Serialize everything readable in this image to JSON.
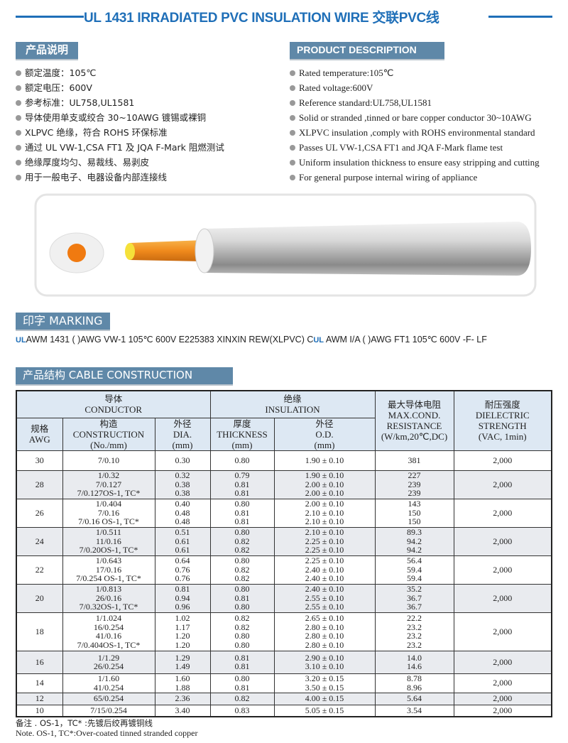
{
  "title": "UL 1431 IRRADIATED PVC INSULATION WIRE  交联PVC线",
  "colors": {
    "accent": "#1f6fb8",
    "badge": "#5f88a8",
    "row_alt": "#e9ebef",
    "header_bg": "#dde8f3"
  },
  "desc_cn": {
    "heading": "产品说明",
    "items": [
      "额定温度：105℃",
      "额定电压：600V",
      "参考标准：UL758,UL1581",
      "导体使用单支或绞合 30~10AWG 镀锡或裸铜",
      "XLPVC 绝缘，符合 ROHS 环保标准",
      "通过 UL VW-1,CSA FT1 及 JQA F-Mark 阻燃测试",
      "绝缘厚度均匀、易裁线、易剥皮",
      "用于一般电子、电器设备内部连接线"
    ]
  },
  "desc_en": {
    "heading": "PRODUCT DESCRIPTION",
    "items": [
      "Rated temperature:105℃",
      "Rated voltage:600V",
      "Reference standard:UL758,UL1581",
      "Solid or stranded ,tinned or bare copper conductor 30~10AWG",
      "XLPVC insulation ,comply with ROHS environmental standard",
      "Passes UL VW-1,CSA FT1 and JQA F-Mark flame test",
      "Uniform insulation thickness to ensure easy stripping and cutting",
      "For general purpose internal wiring of appliance"
    ]
  },
  "marking": {
    "heading": "印字  MARKING",
    "ul_logo": "UL",
    "text1": "AWM 1431 (  )AWG VW-1 105℃ 600V E225383 XINXIN REW(XLPVC) C",
    "text2": " AWM I/A (  )AWG FT1 105℃ 600V  -F- LF"
  },
  "construction": {
    "heading": "产品结构   CABLE CONSTRUCTION",
    "headers": {
      "conductor": [
        "导体",
        "CONDUCTOR"
      ],
      "insulation": [
        "绝缘",
        "INSULATION"
      ],
      "resistance": [
        "最大导体电阻",
        "MAX.COND.",
        "RESISTANCE",
        "(W/km,20℃,DC)"
      ],
      "dielectric": [
        "耐压强度",
        "DIELECTRIC",
        "STRENGTH",
        "(VAC, 1min)"
      ],
      "awg": [
        "规格",
        "AWG"
      ],
      "construction": [
        "构造",
        "CONSTRUCTION",
        "(No./mm)"
      ],
      "dia": [
        "外径",
        "DIA.",
        "(mm)"
      ],
      "thickness": [
        "厚度",
        "THICKNESS",
        "(mm)"
      ],
      "od": [
        "外径",
        "O.D.",
        "(mm)"
      ]
    },
    "rows": [
      {
        "awg": "30",
        "construction": [
          "7/0.10"
        ],
        "dia": [
          "0.30"
        ],
        "thickness": [
          "0.80"
        ],
        "od": [
          "1.90 ± 0.10"
        ],
        "resistance": [
          "381"
        ],
        "dielectric": "2,000"
      },
      {
        "awg": "28",
        "construction": [
          "1/0.32",
          "7/0.127",
          "7/0.127OS-1, TC*"
        ],
        "dia": [
          "0.32",
          "0.38",
          "0.38"
        ],
        "thickness": [
          "0.79",
          "0.81",
          "0.81"
        ],
        "od": [
          "1.90 ± 0.10",
          "2.00 ± 0.10",
          "2.00 ± 0.10"
        ],
        "resistance": [
          "227",
          "239",
          "239"
        ],
        "dielectric": "2,000"
      },
      {
        "awg": "26",
        "construction": [
          "1/0.404",
          "7/0.16",
          "7/0.16 OS-1, TC*"
        ],
        "dia": [
          "0.40",
          "0.48",
          "0.48"
        ],
        "thickness": [
          "0.80",
          "0.81",
          "0.81"
        ],
        "od": [
          "2.00 ± 0.10",
          "2.10 ± 0.10",
          "2.10 ± 0.10"
        ],
        "resistance": [
          "143",
          "150",
          "150"
        ],
        "dielectric": "2,000"
      },
      {
        "awg": "24",
        "construction": [
          "1/0.511",
          "11/0.16",
          "7/0.20OS-1, TC*"
        ],
        "dia": [
          "0.51",
          "0.61",
          "0.61"
        ],
        "thickness": [
          "0.80",
          "0.82",
          "0.82"
        ],
        "od": [
          "2.10 ± 0.10",
          "2.25 ± 0.10",
          "2.25 ± 0.10"
        ],
        "resistance": [
          "89.3",
          "94.2",
          "94.2"
        ],
        "dielectric": "2,000"
      },
      {
        "awg": "22",
        "construction": [
          "1/0.643",
          "17/0.16",
          "7/0.254 OS-1, TC*"
        ],
        "dia": [
          "0.64",
          "0.76",
          "0.76"
        ],
        "thickness": [
          "0.80",
          "0.82",
          "0.82"
        ],
        "od": [
          "2.25 ± 0.10",
          "2.40 ± 0.10",
          "2.40 ± 0.10"
        ],
        "resistance": [
          "56.4",
          "59.4",
          "59.4"
        ],
        "dielectric": "2,000"
      },
      {
        "awg": "20",
        "construction": [
          "1/0.813",
          "26/0.16",
          "7/0.32OS-1, TC*"
        ],
        "dia": [
          "0.81",
          "0.94",
          "0.96"
        ],
        "thickness": [
          "0.80",
          "0.81",
          "0.80"
        ],
        "od": [
          "2.40 ± 0.10",
          "2.55 ± 0.10",
          "2.55 ± 0.10"
        ],
        "resistance": [
          "35.2",
          "36.7",
          "36.7"
        ],
        "dielectric": "2,000"
      },
      {
        "awg": "18",
        "construction": [
          "1/1.024",
          "16/0.254",
          "41/0.16",
          "7/0.404OS-1, TC*"
        ],
        "dia": [
          "1.02",
          "1.17",
          "1.20",
          "1.20"
        ],
        "thickness": [
          "0.82",
          "0.82",
          "0.80",
          "0.80"
        ],
        "od": [
          "2.65 ± 0.10",
          "2.80 ± 0.10",
          "2.80 ± 0.10",
          "2.80 ± 0.10"
        ],
        "resistance": [
          "22.2",
          "23.2",
          "23.2",
          "23.2"
        ],
        "dielectric": "2,000"
      },
      {
        "awg": "16",
        "construction": [
          "1/1.29",
          "26/0.254"
        ],
        "dia": [
          "1.29",
          "1.49"
        ],
        "thickness": [
          "0.81",
          "0.81"
        ],
        "od": [
          "2.90 ± 0.10",
          "3.10 ± 0.10"
        ],
        "resistance": [
          "14.0",
          "14.6"
        ],
        "dielectric": "2,000"
      },
      {
        "awg": "14",
        "construction": [
          "1/1.60",
          "41/0.254"
        ],
        "dia": [
          "1.60",
          "1.88"
        ],
        "thickness": [
          "0.80",
          "0.81"
        ],
        "od": [
          "3.20 ± 0.15",
          "3.50 ± 0.15"
        ],
        "resistance": [
          "8.78",
          "8.96"
        ],
        "dielectric": "2,000"
      },
      {
        "awg": "12",
        "construction": [
          "65/0.254"
        ],
        "dia": [
          "2.36"
        ],
        "thickness": [
          "0.82"
        ],
        "od": [
          "4.00 ± 0.15"
        ],
        "resistance": [
          "5.64"
        ],
        "dielectric": "2,000"
      },
      {
        "awg": "10",
        "construction": [
          "7/15/0.254"
        ],
        "dia": [
          "3.40"
        ],
        "thickness": [
          "0.83"
        ],
        "od": [
          "5.05 ± 0.15"
        ],
        "resistance": [
          "3.54"
        ],
        "dielectric": "2,000"
      }
    ]
  },
  "notes": {
    "cn": "备注 . OS-1，TC* :先镀后绞再镀铜线",
    "en": "Note. OS-1, TC*:Over-coated tinned stranded copper"
  }
}
